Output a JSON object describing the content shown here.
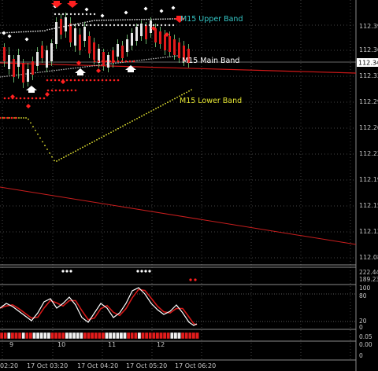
{
  "main_chart": {
    "band_labels": {
      "upper": "M15 Upper Band",
      "main": "M15 Main Band",
      "lower": "M15 Lower Band"
    },
    "price_axis": [
      "112.39",
      "112.36",
      "112.33",
      "112.29",
      "112.26",
      "112.22",
      "112.19",
      "112.15",
      "112.12",
      "112.08"
    ],
    "current_price": "112.34"
  },
  "subwindow_1": {
    "axis": [
      "222.44",
      "189.23"
    ]
  },
  "subwindow_2": {
    "axis": [
      "100",
      "80",
      "20",
      "0"
    ]
  },
  "subwindow_3": {
    "day_labels": [
      "9",
      "10",
      "11",
      "12"
    ],
    "axis": [
      "0.05",
      "0.00",
      "0"
    ]
  },
  "time_axis": [
    "02:20",
    "17 Oct 03:20",
    "17 Oct 04:20",
    "17 Oct 05:20",
    "17 Oct 06:20"
  ],
  "colors": {
    "background": "#000000",
    "grid": "#5a5a5a",
    "upper_band": "#35c7c7",
    "main_band": "#ffffff",
    "lower_band": "#e6e632",
    "trend_line": "#c81e1e",
    "bear_marker": "#ff2020",
    "bull_marker": "#ffffff"
  }
}
